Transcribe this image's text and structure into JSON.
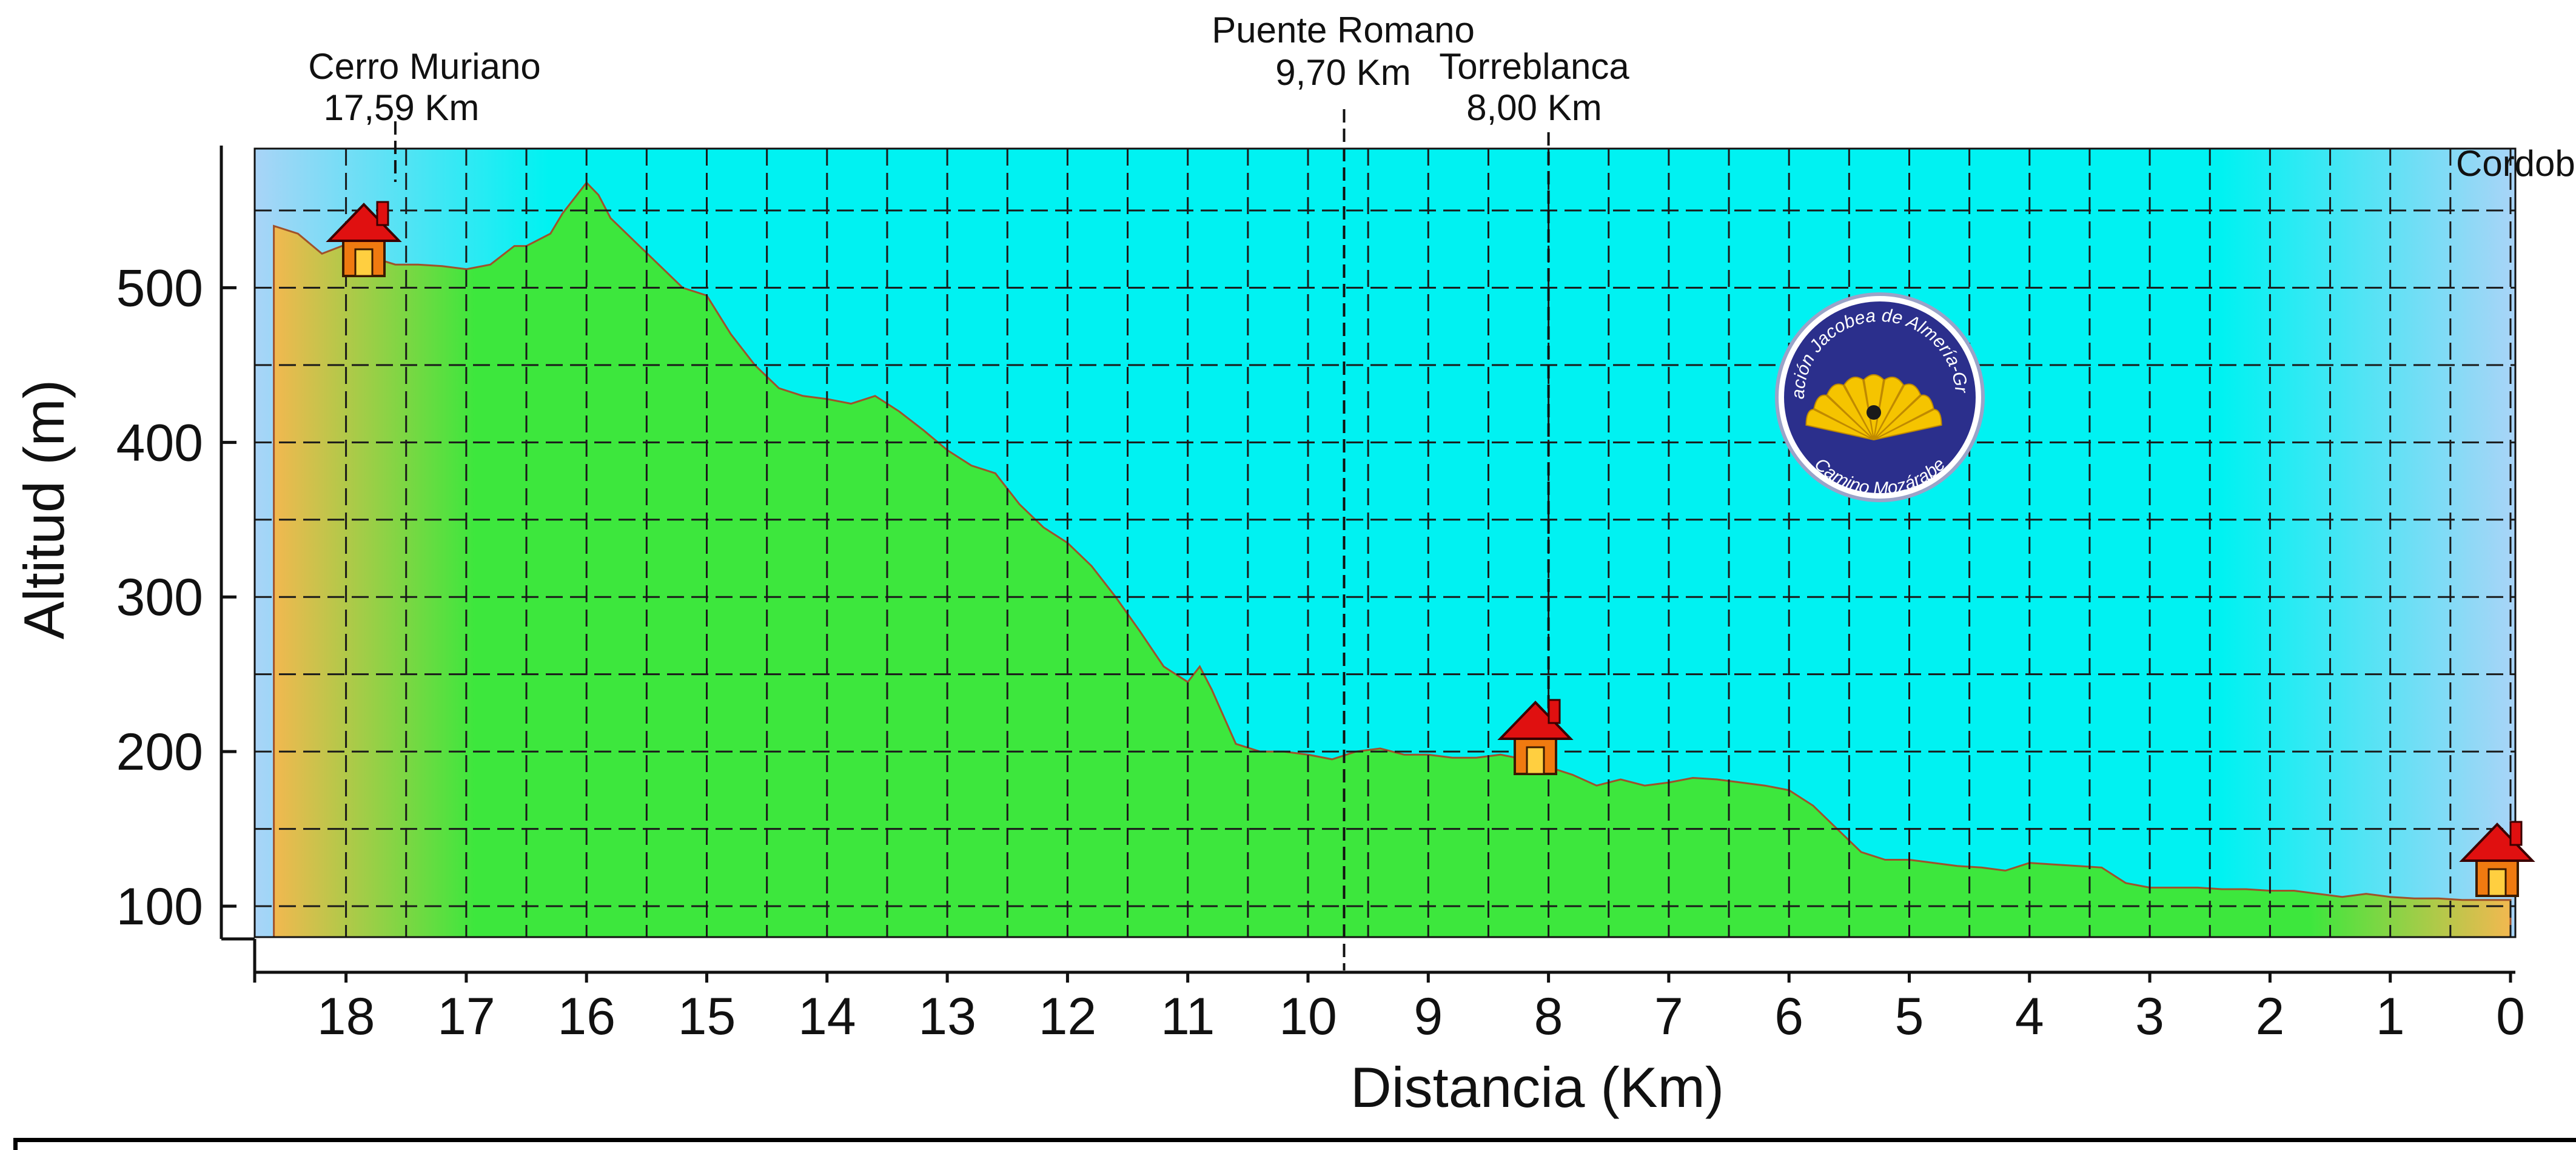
{
  "chart_data": {
    "type": "area",
    "title": "",
    "xlabel": "Distancia (Km)",
    "ylabel": "Altitud (m)",
    "x_reversed": true,
    "xlim": [
      18.6,
      0
    ],
    "ylim": [
      80,
      590
    ],
    "xticks": [
      18,
      17,
      16,
      15,
      14,
      13,
      12,
      11,
      10,
      9,
      8,
      7,
      6,
      5,
      4,
      3,
      2,
      1,
      0
    ],
    "yticks": [
      100,
      200,
      300,
      400,
      500
    ],
    "grid": true,
    "series": [
      {
        "x": [
          18.6,
          18.4,
          18.2,
          18.0,
          17.8,
          17.59,
          17.4,
          17.2,
          17.0,
          16.8,
          16.6,
          16.5,
          16.3,
          16.2,
          16.1,
          16.0,
          15.9,
          15.8,
          15.6,
          15.4,
          15.2,
          15.0,
          14.8,
          14.6,
          14.4,
          14.2,
          14.0,
          13.8,
          13.6,
          13.4,
          13.2,
          13.0,
          12.8,
          12.6,
          12.4,
          12.2,
          12.0,
          11.8,
          11.6,
          11.4,
          11.2,
          11.0,
          10.9,
          10.8,
          10.6,
          10.4,
          10.2,
          10.0,
          9.8,
          9.6,
          9.4,
          9.2,
          9.0,
          8.8,
          8.6,
          8.4,
          8.2,
          8.0,
          7.8,
          7.6,
          7.4,
          7.2,
          7.0,
          6.8,
          6.6,
          6.4,
          6.2,
          6.0,
          5.8,
          5.6,
          5.4,
          5.2,
          5.0,
          4.8,
          4.6,
          4.4,
          4.2,
          4.0,
          3.8,
          3.6,
          3.4,
          3.2,
          3.0,
          2.8,
          2.6,
          2.4,
          2.2,
          2.0,
          1.8,
          1.6,
          1.4,
          1.2,
          1.0,
          0.8,
          0.6,
          0.4,
          0.2,
          0.0
        ],
        "y": [
          540,
          535,
          522,
          528,
          520,
          515,
          515,
          514,
          512,
          515,
          527,
          527,
          535,
          548,
          558,
          568,
          560,
          545,
          530,
          515,
          500,
          495,
          470,
          450,
          435,
          430,
          428,
          425,
          430,
          420,
          408,
          395,
          385,
          380,
          360,
          345,
          335,
          320,
          300,
          278,
          255,
          245,
          255,
          240,
          205,
          200,
          200,
          198,
          195,
          200,
          202,
          198,
          198,
          196,
          196,
          198,
          195,
          190,
          185,
          178,
          182,
          178,
          180,
          183,
          182,
          180,
          178,
          175,
          165,
          150,
          135,
          130,
          130,
          128,
          126,
          125,
          123,
          128,
          127,
          126,
          125,
          115,
          112,
          112,
          112,
          111,
          111,
          110,
          110,
          108,
          106,
          108,
          106,
          105,
          105,
          104,
          104,
          104
        ]
      }
    ],
    "waypoints": [
      {
        "name": "Cerro Muriano",
        "dist": "17,59 Km",
        "km": 17.59,
        "house": true
      },
      {
        "name": "Puente Romano",
        "dist": "9,70 Km",
        "km": 9.7,
        "house": false
      },
      {
        "name": "Torreblanca",
        "dist": "8,00 Km",
        "km": 8.0,
        "house": true
      },
      {
        "name": "Cordob",
        "dist": "",
        "km": 0,
        "house": true
      }
    ]
  },
  "seal": {
    "top_text": "Asociación Jacobea de Almería-Granada",
    "bottom_text": "Camino Mozárabe"
  },
  "colors": {
    "sky": "#00f2f2",
    "sky_edge": "#a9d4f7",
    "ground": "#3de73d",
    "ground_edge": "#f2b850",
    "seal_blue": "#2b2f8c",
    "shell_yellow": "#f5c400",
    "house_roof": "#e01010",
    "house_wall": "#f07a10"
  }
}
